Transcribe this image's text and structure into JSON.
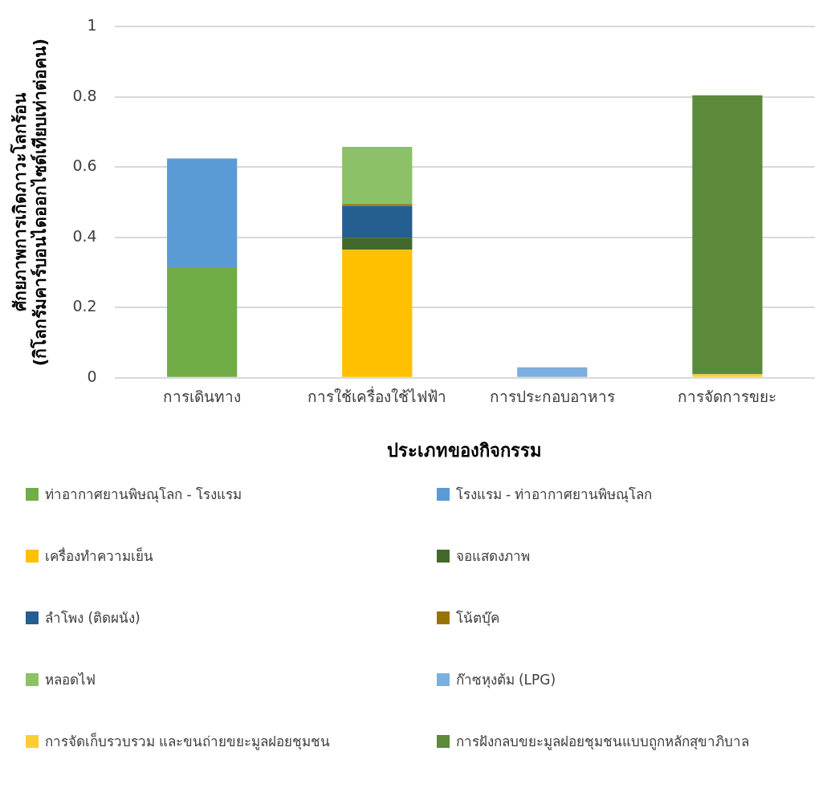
{
  "chart_data": {
    "type": "bar",
    "stacked": true,
    "xlabel": "ประเภทของกิจกรรม",
    "ylabel": "ศักยภาพการเกิดภาวะโลกร้อน\n(กิโลกรัมคาร์บอนไดออกไซด์เทียบเท่าต่อคน)",
    "categories": [
      "การเดินทาง",
      "การใช้เครื่องใช้ไฟฟ้า",
      "การประกอบอาหาร",
      "การจัดการขยะ"
    ],
    "ylim": [
      0,
      1
    ],
    "yticks": [
      0,
      0.2,
      0.4,
      0.6,
      0.8,
      1
    ],
    "grid": "y",
    "legend": "bottom",
    "series": [
      {
        "name": "ท่าอากาศยานพิษณุโลก - โรงแรม",
        "color": "#70ad47",
        "values": [
          0.315,
          null,
          null,
          null
        ]
      },
      {
        "name": "โรงแรม - ท่าอากาศยานพิษณุโลก",
        "color": "#5b9bd5",
        "values": [
          0.31,
          null,
          null,
          null
        ]
      },
      {
        "name": "เครื่องทำความเย็น",
        "color": "#ffc000",
        "values": [
          null,
          0.365,
          null,
          null
        ]
      },
      {
        "name": "จอแสดงภาพ",
        "color": "#43682b",
        "values": [
          null,
          0.034,
          null,
          null
        ]
      },
      {
        "name": "ลำโพง (ติดผนัง)",
        "color": "#255e91",
        "values": [
          null,
          0.091,
          null,
          null
        ]
      },
      {
        "name": "โน้ตบุ๊ค",
        "color": "#997300",
        "values": [
          null,
          0.005,
          null,
          null
        ]
      },
      {
        "name": "หลอดไฟ",
        "color": "#8cc168",
        "values": [
          null,
          0.163,
          null,
          null
        ]
      },
      {
        "name": "ก๊าซหุงต้ม (LPG)",
        "color": "#7cafdd",
        "values": [
          null,
          null,
          0.03,
          null
        ]
      },
      {
        "name": "การจัดเก็บรวบรวม และขนถ่ายขยะมูลฝอยชุมชน",
        "color": "#ffcd33",
        "values": [
          null,
          null,
          null,
          0.01
        ]
      },
      {
        "name": "การฝังกลบขยะมูลฝอยชุมชนแบบถูกหลักสุขาภิบาล",
        "color": "#5b8a3b",
        "values": [
          null,
          null,
          null,
          0.795
        ]
      }
    ]
  }
}
